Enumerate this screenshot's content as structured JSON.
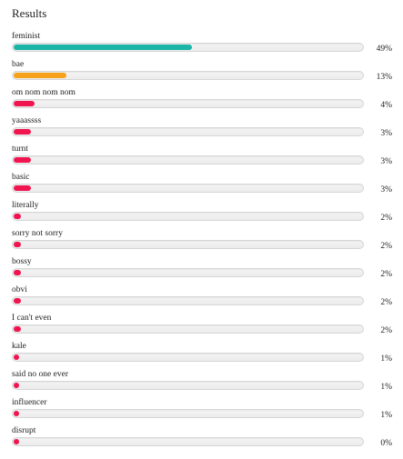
{
  "title": "Results",
  "colors": {
    "teal": "#1ab5a6",
    "orange": "#f7a21b",
    "pink": "#f0144f"
  },
  "results": [
    {
      "label": "feminist",
      "percent_text": "49%",
      "value": 49,
      "color": "#1ab5a6"
    },
    {
      "label": "bae",
      "percent_text": "13%",
      "value": 13,
      "color": "#f7a21b"
    },
    {
      "label": "om nom nom nom",
      "percent_text": "4%",
      "value": 4,
      "color": "#f0144f"
    },
    {
      "label": "yaaassss",
      "percent_text": "3%",
      "value": 3,
      "color": "#f0144f"
    },
    {
      "label": "turnt",
      "percent_text": "3%",
      "value": 3,
      "color": "#f0144f"
    },
    {
      "label": "basic",
      "percent_text": "3%",
      "value": 3,
      "color": "#f0144f"
    },
    {
      "label": "literally",
      "percent_text": "2%",
      "value": 2,
      "color": "#f0144f"
    },
    {
      "label": "sorry not sorry",
      "percent_text": "2%",
      "value": 2,
      "color": "#f0144f"
    },
    {
      "label": "bossy",
      "percent_text": "2%",
      "value": 2,
      "color": "#f0144f"
    },
    {
      "label": "obvi",
      "percent_text": "2%",
      "value": 2,
      "color": "#f0144f"
    },
    {
      "label": "I can't even",
      "percent_text": "2%",
      "value": 2,
      "color": "#f0144f"
    },
    {
      "label": "kale",
      "percent_text": "1%",
      "value": 1,
      "color": "#f0144f"
    },
    {
      "label": "said no one ever",
      "percent_text": "1%",
      "value": 1,
      "color": "#f0144f"
    },
    {
      "label": "influencer",
      "percent_text": "1%",
      "value": 1,
      "color": "#f0144f"
    },
    {
      "label": "disrupt",
      "percent_text": "0%",
      "value": 0,
      "color": "#f0144f"
    }
  ]
}
